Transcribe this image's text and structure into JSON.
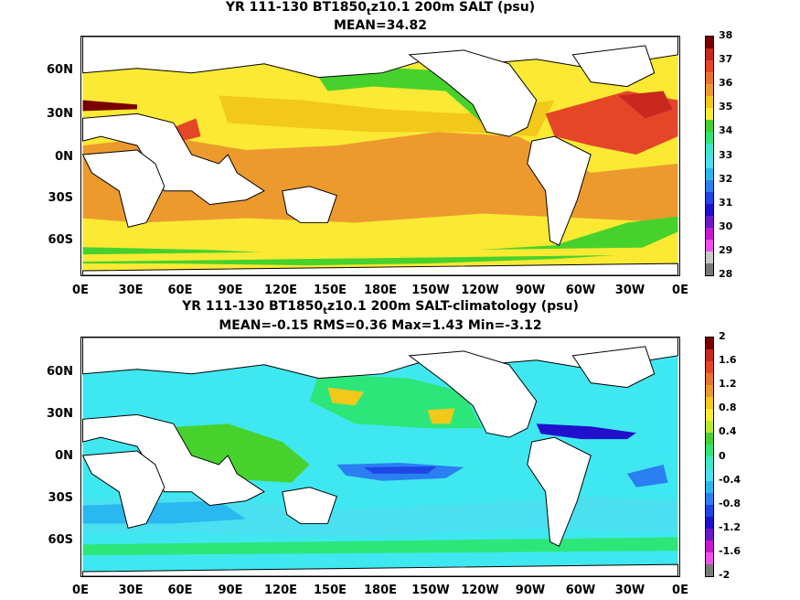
{
  "panels": [
    {
      "title_pre": "YR 111-130 BT1850",
      "title_sub": "t",
      "title_post": "z10.1 200m SALT (psu)",
      "subtitle": "MEAN=34.82",
      "colorbar_ticks": [
        "38",
        "37",
        "36",
        "35",
        "34",
        "33",
        "32",
        "31",
        "30",
        "29",
        "28"
      ],
      "colorbar_colors": [
        "#7a0000",
        "#c8281e",
        "#e64628",
        "#e8742a",
        "#ec9a2e",
        "#f2c81a",
        "#fbe934",
        "#47d12d",
        "#2de67a",
        "#3fe8c8",
        "#4be0f0",
        "#2ab8f0",
        "#2a80f0",
        "#1e46e6",
        "#2010cc",
        "#7018c8",
        "#c818d0",
        "#ee50ee",
        "#c8c8c8",
        "#787878"
      ],
      "main_color": "#fbe934"
    },
    {
      "title_pre": "YR 111-130 BT1850",
      "title_sub": "t",
      "title_post": "z10.1 200m SALT-climatology (psu)",
      "subtitle": "MEAN=-0.15   RMS=0.36   Max=1.43   Min=-3.12",
      "colorbar_ticks": [
        "2",
        "1.6",
        "1.2",
        "0.8",
        "0.4",
        "0",
        "-0.4",
        "-0.8",
        "-1.2",
        "-1.6",
        "-2"
      ],
      "colorbar_colors": [
        "#7a0000",
        "#c8281e",
        "#e64628",
        "#e8742a",
        "#ec9a2e",
        "#f2c81a",
        "#fbe934",
        "#bce82a",
        "#47d12d",
        "#2de67a",
        "#3fe8c8",
        "#4be0f0",
        "#2ab8f0",
        "#2a80f0",
        "#1e46e6",
        "#2010cc",
        "#7018c8",
        "#c818d0",
        "#ee50ee",
        "#787878"
      ],
      "main_color": "#3fe8f0"
    }
  ],
  "lat_labels": [
    "60N",
    "30N",
    "0N",
    "30S",
    "60S"
  ],
  "lon_labels": [
    "0E",
    "30E",
    "60E",
    "90E",
    "120E",
    "150E",
    "180E",
    "150W",
    "120W",
    "90W",
    "60W",
    "30W",
    "0E"
  ]
}
